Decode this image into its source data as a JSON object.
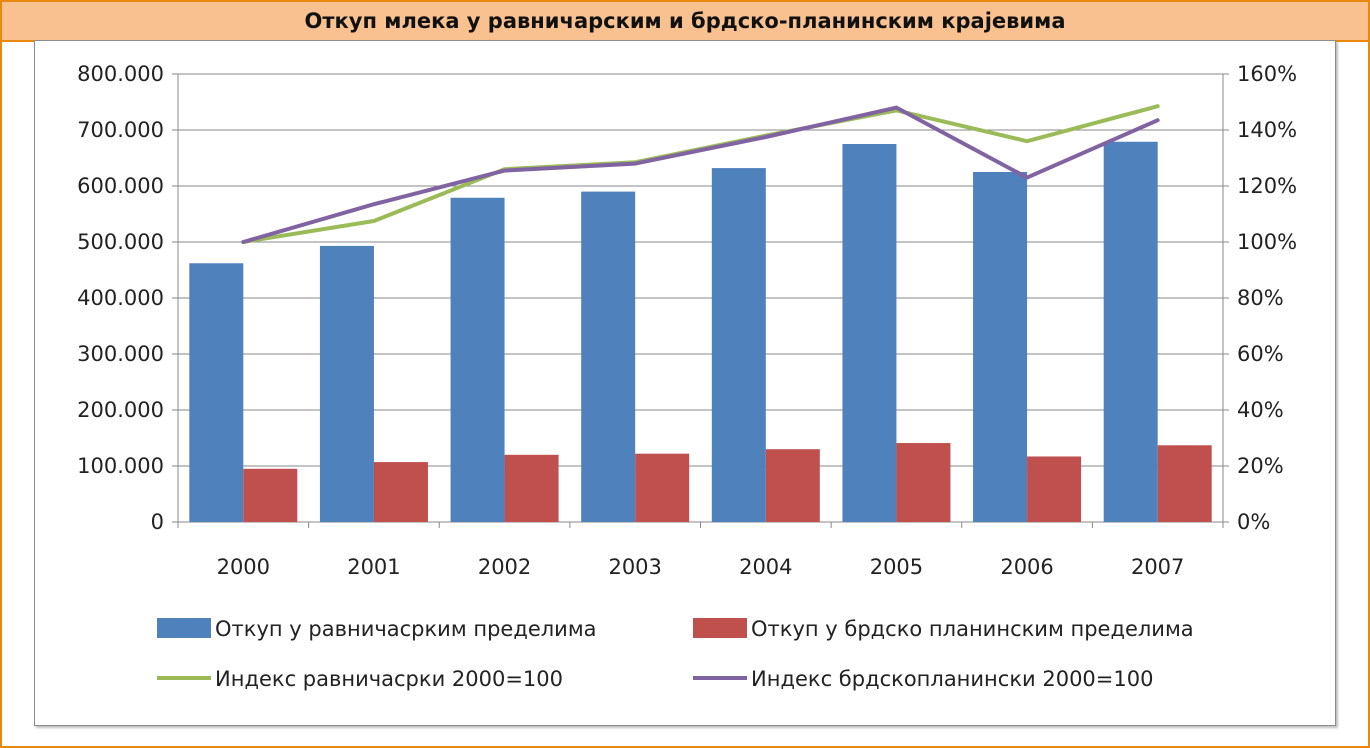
{
  "title": "Откуп млека у равничарским и брдско-планинским крајевима",
  "chart_data": {
    "type": "bar",
    "categories": [
      "2000",
      "2001",
      "2002",
      "2003",
      "2004",
      "2005",
      "2006",
      "2007"
    ],
    "series": [
      {
        "name": "Откуп у равничасрким пределима",
        "type": "bar",
        "axis": "left",
        "color": "#4f81bd",
        "values": [
          462000,
          493000,
          579000,
          590000,
          632000,
          675000,
          625000,
          679000
        ]
      },
      {
        "name": "Откуп у брдско планинским пределима",
        "type": "bar",
        "axis": "left",
        "color": "#c0504d",
        "values": [
          95000,
          107000,
          120000,
          122000,
          130000,
          141000,
          117000,
          137000
        ]
      },
      {
        "name": "Индекс равничасрки 2000=100",
        "type": "line",
        "axis": "right",
        "color": "#9bbb59",
        "values": [
          100,
          107.5,
          126,
          128.5,
          138,
          147,
          136,
          148.5
        ]
      },
      {
        "name": "Индекс брдскопланински 2000=100",
        "type": "line",
        "axis": "right",
        "color": "#8064a2",
        "values": [
          100,
          113.5,
          125.5,
          128,
          137.5,
          148,
          123,
          143.5
        ]
      }
    ],
    "y_left": {
      "range": [
        0,
        800000
      ],
      "ticks": [
        "800.000",
        "700.000",
        "600.000",
        "500.000",
        "400.000",
        "300.000",
        "200.000",
        "100.000",
        "0"
      ]
    },
    "y_right": {
      "range": [
        0,
        160
      ],
      "ticks": [
        "160%",
        "140%",
        "120%",
        "100%",
        "80%",
        "60%",
        "40%",
        "20%",
        "0%"
      ]
    },
    "grid": true,
    "legend_position": "bottom"
  }
}
